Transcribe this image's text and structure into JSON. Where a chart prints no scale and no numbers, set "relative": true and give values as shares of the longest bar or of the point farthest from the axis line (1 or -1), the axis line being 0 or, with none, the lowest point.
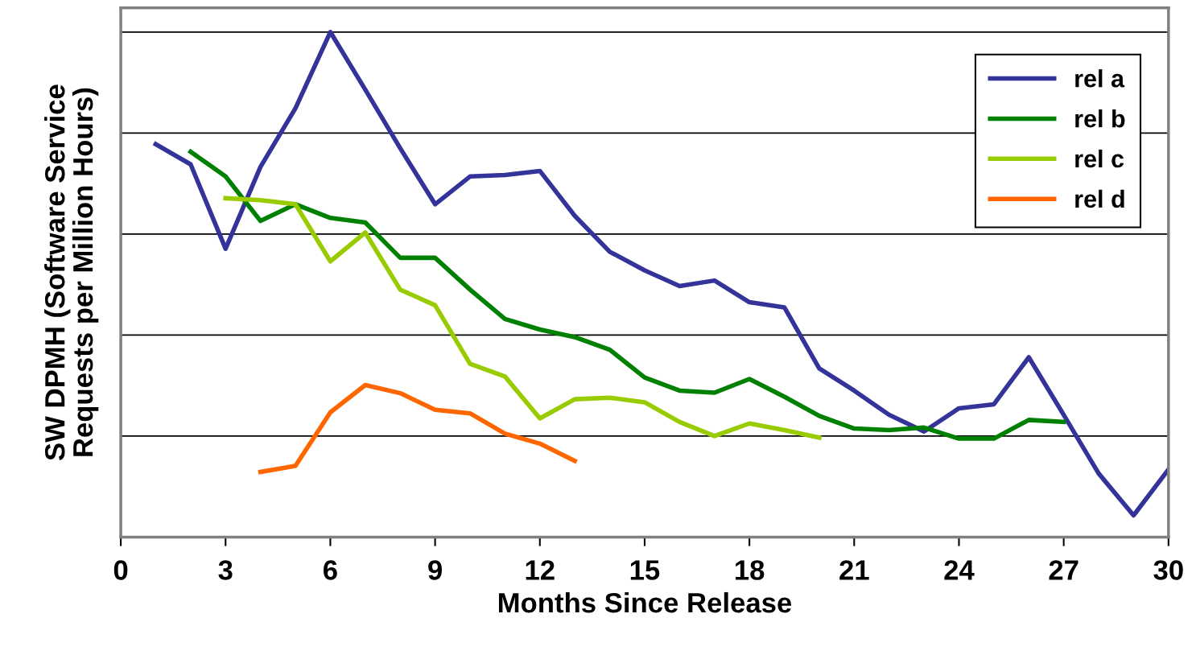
{
  "chart_data": {
    "type": "line",
    "relative": true,
    "xlabel": "Months Since Release",
    "ylabel": "SW DPMH (Software Service\nRequests per Million Hours)",
    "xlim": [
      0,
      30
    ],
    "xticks": [
      0,
      3,
      6,
      9,
      12,
      15,
      18,
      21,
      24,
      27,
      30
    ],
    "grid": "y",
    "legend": "top right",
    "tick_labels": "x",
    "marker": "none",
    "line_style": "solid",
    "series": [
      {
        "name": "rel a",
        "color": "#333399",
        "x": [
          1,
          2,
          3,
          4,
          5,
          6,
          7,
          8,
          9,
          10,
          11,
          12,
          13,
          14,
          15,
          16,
          17,
          18,
          19,
          20,
          21,
          22,
          23,
          24,
          25,
          26,
          27,
          28,
          29,
          30
        ],
        "values": [
          0.778,
          0.738,
          0.571,
          0.733,
          0.849,
          1,
          0.886,
          0.77,
          0.659,
          0.714,
          0.717,
          0.725,
          0.636,
          0.565,
          0.528,
          0.497,
          0.508,
          0.465,
          0.455,
          0.334,
          0.29,
          0.242,
          0.209,
          0.255,
          0.263,
          0.356,
          0.242,
          0.126,
          0.043,
          0.134
        ]
      },
      {
        "name": "rel b",
        "color": "#008000",
        "x": [
          2,
          3,
          4,
          5,
          6,
          7,
          8,
          9,
          10,
          11,
          12,
          13,
          14,
          15,
          16,
          17,
          18,
          19,
          20,
          21,
          22,
          23,
          24,
          25,
          26,
          27
        ],
        "values": [
          0.763,
          0.714,
          0.626,
          0.659,
          0.632,
          0.623,
          0.553,
          0.553,
          0.49,
          0.432,
          0.411,
          0.396,
          0.371,
          0.316,
          0.29,
          0.286,
          0.313,
          0.278,
          0.24,
          0.215,
          0.212,
          0.217,
          0.195,
          0.195,
          0.232,
          0.228
        ]
      },
      {
        "name": "rel c",
        "color": "#99cc00",
        "x": [
          3,
          4,
          5,
          6,
          7,
          8,
          9,
          10,
          11,
          12,
          13,
          14,
          15,
          16,
          17,
          18,
          19,
          20
        ],
        "values": [
          0.671,
          0.667,
          0.659,
          0.546,
          0.603,
          0.49,
          0.459,
          0.343,
          0.318,
          0.235,
          0.273,
          0.276,
          0.267,
          0.228,
          0.2,
          0.225,
          0.212,
          0.197
        ]
      },
      {
        "name": "rel d",
        "color": "#ff6600",
        "x": [
          4,
          5,
          6,
          7,
          8,
          9,
          10,
          11,
          12,
          13
        ],
        "values": [
          0.129,
          0.141,
          0.247,
          0.301,
          0.285,
          0.252,
          0.245,
          0.205,
          0.185,
          0.151
        ]
      }
    ]
  }
}
